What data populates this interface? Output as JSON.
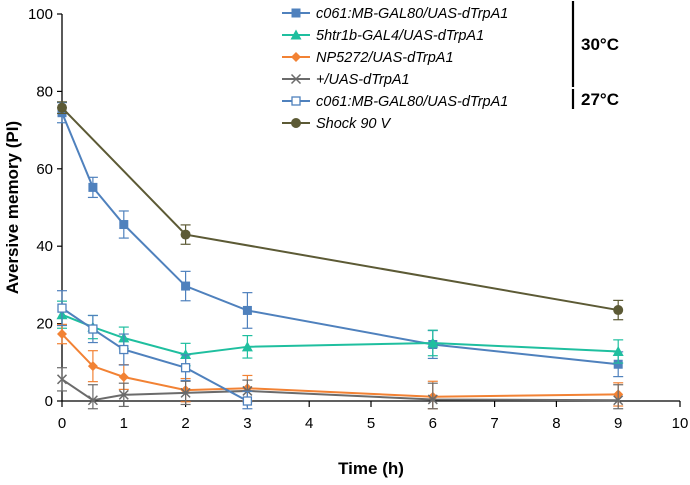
{
  "chart_data": {
    "type": "line",
    "xlabel": "Time (h)",
    "ylabel": "Aversive memory (PI)",
    "xlim": [
      0,
      10
    ],
    "ylim": [
      0,
      100
    ],
    "x_ticks": [
      "0",
      "1",
      "2",
      "3",
      "4",
      "5",
      "6",
      "7",
      "8",
      "9",
      "10"
    ],
    "y_ticks": [
      "0",
      "20",
      "40",
      "60",
      "80",
      "100"
    ],
    "grid": false,
    "legend_position": "top-right",
    "series": [
      {
        "name": "c061:MB-GAL80/UAS-dTrpA1",
        "color": "#4f81bd",
        "marker": "square-filled",
        "x": [
          0,
          0.5,
          1,
          2,
          3,
          6,
          9
        ],
        "y": [
          74.5,
          55.2,
          45.6,
          29.7,
          23.4,
          14.6,
          9.5
        ],
        "err": [
          2.6,
          2.6,
          3.5,
          3.8,
          4.6,
          3.6,
          3.2
        ]
      },
      {
        "name": "5htr1b-GAL4/UAS-dTrpA1",
        "color": "#1fbf9f",
        "marker": "triangle",
        "x": [
          0,
          0.5,
          1,
          2,
          3,
          6,
          9
        ],
        "y": [
          22.3,
          19.1,
          16.3,
          12.0,
          14.0,
          15.0,
          12.8
        ],
        "err": [
          3.5,
          3.0,
          2.8,
          2.9,
          2.9,
          3.3,
          3.0
        ]
      },
      {
        "name": "NP5272/UAS-dTrpA1",
        "color": "#f28234",
        "marker": "diamond",
        "x": [
          0,
          0.5,
          1,
          2,
          3,
          6,
          9
        ],
        "y": [
          17.3,
          9.0,
          6.2,
          2.8,
          3.3,
          1.1,
          1.7
        ],
        "err": [
          2.5,
          4.0,
          3.2,
          3.0,
          3.3,
          4.0,
          3.0
        ]
      },
      {
        "name": "+/UAS-dTrpA1",
        "color": "#6b6b6b",
        "marker": "x",
        "x": [
          0,
          0.5,
          1,
          2,
          3,
          6,
          9
        ],
        "y": [
          5.6,
          0.2,
          1.6,
          2.1,
          2.6,
          0.4,
          0.2
        ],
        "err": [
          3.0,
          4.0,
          3.0,
          3.0,
          2.8,
          4.2,
          4.0
        ]
      },
      {
        "name": "c061:MB-GAL80/UAS-dTrpA1",
        "color": "#4f81bd",
        "marker": "square-open",
        "x": [
          0,
          0.5,
          1,
          2,
          3
        ],
        "y": [
          24.0,
          18.6,
          13.3,
          8.6,
          0.0
        ],
        "err": [
          4.5,
          3.5,
          4.0,
          3.3,
          2.5
        ]
      },
      {
        "name": "Shock 90 V",
        "color": "#5c5a35",
        "marker": "circle",
        "x": [
          0,
          2,
          9
        ],
        "y": [
          75.8,
          43.0,
          23.5
        ],
        "err": [
          1.5,
          2.5,
          2.5
        ]
      }
    ],
    "legend_groups": [
      {
        "label": "30°C",
        "series_indices": [
          0,
          1,
          2,
          3
        ]
      },
      {
        "label": "27°C",
        "series_indices": [
          4
        ]
      }
    ]
  }
}
